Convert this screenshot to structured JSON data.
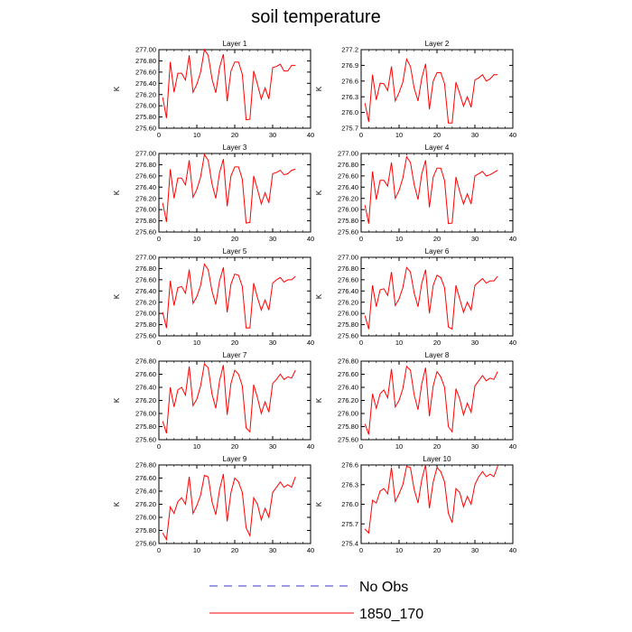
{
  "title": "soil temperature",
  "legend": [
    {
      "label": "No Obs",
      "color": "#3333cc",
      "dashed": true
    },
    {
      "label": "1850_170",
      "color": "#ff0000",
      "dashed": false
    }
  ],
  "chart_data": [
    {
      "type": "line",
      "title": "Layer 1",
      "ylabel": "K",
      "xlim": [
        0,
        40
      ],
      "ylim": [
        275.6,
        277.0
      ],
      "xticks": [
        "0",
        "10",
        "20",
        "30",
        "40"
      ],
      "yticks": [
        "275.60",
        "275.80",
        "276.00",
        "276.20",
        "276.40",
        "276.60",
        "276.80",
        "277.00"
      ],
      "series": [
        {
          "name": "1850_170",
          "color": "#ff0000",
          "x": [
            1,
            2,
            3,
            4,
            5,
            6,
            7,
            8,
            9,
            10,
            11,
            12,
            13,
            14,
            15,
            16,
            17,
            18,
            19,
            20,
            21,
            22,
            23,
            24,
            25,
            26,
            27,
            28,
            29,
            30,
            31,
            32,
            33,
            34,
            35,
            36
          ],
          "values": [
            276.15,
            275.78,
            276.78,
            276.24,
            276.58,
            276.58,
            276.46,
            276.9,
            276.24,
            276.38,
            276.6,
            277.0,
            276.9,
            276.48,
            276.23,
            276.68,
            276.92,
            276.08,
            276.62,
            276.78,
            276.78,
            276.56,
            275.75,
            275.76,
            276.62,
            276.38,
            276.12,
            276.32,
            276.12,
            276.68,
            276.7,
            276.74,
            276.62,
            276.62,
            276.72,
            276.72
          ]
        }
      ]
    },
    {
      "type": "line",
      "title": "Layer 2",
      "ylabel": "K",
      "xlim": [
        0,
        40
      ],
      "ylim": [
        275.7,
        277.2
      ],
      "xticks": [
        "0",
        "10",
        "20",
        "30",
        "40"
      ],
      "yticks": [
        "275.7",
        "276.0",
        "276.3",
        "276.6",
        "276.9",
        "277.2"
      ],
      "series": [
        {
          "name": "1850_170",
          "color": "#ff0000",
          "x": [
            1,
            2,
            3,
            4,
            5,
            6,
            7,
            8,
            9,
            10,
            11,
            12,
            13,
            14,
            15,
            16,
            17,
            18,
            19,
            20,
            21,
            22,
            23,
            24,
            25,
            26,
            27,
            28,
            29,
            30,
            31,
            32,
            33,
            34,
            35,
            36
          ],
          "values": [
            276.18,
            275.82,
            276.72,
            276.24,
            276.56,
            276.55,
            276.42,
            276.88,
            276.22,
            276.38,
            276.58,
            277.02,
            276.88,
            276.46,
            276.22,
            276.66,
            276.93,
            276.06,
            276.6,
            276.76,
            276.76,
            276.55,
            275.8,
            275.8,
            276.58,
            276.36,
            276.12,
            276.3,
            276.1,
            276.62,
            276.66,
            276.72,
            276.6,
            276.64,
            276.72,
            276.72
          ]
        }
      ]
    },
    {
      "type": "line",
      "title": "Layer 3",
      "ylabel": "K",
      "xlim": [
        0,
        40
      ],
      "ylim": [
        275.6,
        277.0
      ],
      "xticks": [
        "0",
        "10",
        "20",
        "30",
        "40"
      ],
      "yticks": [
        "275.60",
        "275.80",
        "276.00",
        "276.20",
        "276.40",
        "276.60",
        "276.80",
        "277.00"
      ],
      "series": [
        {
          "name": "1850_170",
          "color": "#ff0000",
          "x": [
            1,
            2,
            3,
            4,
            5,
            6,
            7,
            8,
            9,
            10,
            11,
            12,
            13,
            14,
            15,
            16,
            17,
            18,
            19,
            20,
            21,
            22,
            23,
            24,
            25,
            26,
            27,
            28,
            29,
            30,
            31,
            32,
            33,
            34,
            35,
            36
          ],
          "values": [
            276.12,
            275.78,
            276.72,
            276.2,
            276.56,
            276.56,
            276.44,
            276.88,
            276.22,
            276.36,
            276.58,
            276.98,
            276.88,
            276.46,
            276.2,
            276.66,
            276.9,
            276.06,
            276.6,
            276.76,
            276.76,
            276.54,
            275.76,
            275.77,
            276.6,
            276.36,
            276.1,
            276.3,
            276.12,
            276.64,
            276.66,
            276.7,
            276.62,
            276.64,
            276.7,
            276.72
          ]
        }
      ]
    },
    {
      "type": "line",
      "title": "Layer 4",
      "ylabel": "K",
      "xlim": [
        0,
        40
      ],
      "ylim": [
        275.6,
        277.0
      ],
      "xticks": [
        "0",
        "10",
        "20",
        "30",
        "40"
      ],
      "yticks": [
        "275.60",
        "275.80",
        "276.00",
        "276.20",
        "276.40",
        "276.60",
        "276.80",
        "277.00"
      ],
      "series": [
        {
          "name": "1850_170",
          "color": "#ff0000",
          "x": [
            1,
            2,
            3,
            4,
            5,
            6,
            7,
            8,
            9,
            10,
            11,
            12,
            13,
            14,
            15,
            16,
            17,
            18,
            19,
            20,
            21,
            22,
            23,
            24,
            25,
            26,
            27,
            28,
            29,
            30,
            31,
            32,
            33,
            34,
            35,
            36
          ],
          "values": [
            276.08,
            275.75,
            276.68,
            276.18,
            276.52,
            276.52,
            276.42,
            276.84,
            276.2,
            276.34,
            276.56,
            276.94,
            276.84,
            276.44,
            276.18,
            276.64,
            276.88,
            276.04,
            276.58,
            276.74,
            276.74,
            276.52,
            275.75,
            275.76,
            276.58,
            276.32,
            276.1,
            276.28,
            276.1,
            276.6,
            276.64,
            276.68,
            276.6,
            276.62,
            276.66,
            276.7
          ]
        }
      ]
    },
    {
      "type": "line",
      "title": "Layer 5",
      "ylabel": "K",
      "xlim": [
        0,
        40
      ],
      "ylim": [
        275.6,
        277.0
      ],
      "xticks": [
        "0",
        "10",
        "20",
        "30",
        "40"
      ],
      "yticks": [
        "275.60",
        "275.80",
        "276.00",
        "276.20",
        "276.40",
        "276.60",
        "276.80",
        "277.00"
      ],
      "series": [
        {
          "name": "1850_170",
          "color": "#ff0000",
          "x": [
            1,
            2,
            3,
            4,
            5,
            6,
            7,
            8,
            9,
            10,
            11,
            12,
            13,
            14,
            15,
            16,
            17,
            18,
            19,
            20,
            21,
            22,
            23,
            24,
            25,
            26,
            27,
            28,
            29,
            30,
            31,
            32,
            33,
            34,
            35,
            36
          ],
          "values": [
            276.02,
            275.74,
            276.58,
            276.14,
            276.46,
            276.48,
            276.36,
            276.78,
            276.18,
            276.3,
            276.5,
            276.88,
            276.78,
            276.4,
            276.16,
            276.58,
            276.82,
            276.02,
            276.52,
            276.7,
            276.68,
            276.48,
            275.74,
            275.74,
            276.54,
            276.28,
            276.06,
            276.24,
            276.06,
            276.54,
            276.6,
            276.64,
            276.56,
            276.6,
            276.6,
            276.66
          ]
        }
      ]
    },
    {
      "type": "line",
      "title": "Layer 6",
      "ylabel": "K",
      "xlim": [
        0,
        40
      ],
      "ylim": [
        275.6,
        277.0
      ],
      "xticks": [
        "0",
        "10",
        "20",
        "30",
        "40"
      ],
      "yticks": [
        "275.60",
        "275.80",
        "276.00",
        "276.20",
        "276.40",
        "276.60",
        "276.80",
        "277.00"
      ],
      "series": [
        {
          "name": "1850_170",
          "color": "#ff0000",
          "x": [
            1,
            2,
            3,
            4,
            5,
            6,
            7,
            8,
            9,
            10,
            11,
            12,
            13,
            14,
            15,
            16,
            17,
            18,
            19,
            20,
            21,
            22,
            23,
            24,
            25,
            26,
            27,
            28,
            29,
            30,
            31,
            32,
            33,
            34,
            35,
            36
          ],
          "values": [
            275.96,
            275.72,
            276.5,
            276.12,
            276.42,
            276.44,
            276.32,
            276.74,
            276.14,
            276.26,
            276.46,
            276.82,
            276.74,
            276.36,
            276.12,
            276.54,
            276.78,
            276.0,
            276.5,
            276.68,
            276.64,
            276.46,
            275.76,
            275.72,
            276.5,
            276.26,
            276.02,
            276.2,
            276.06,
            276.5,
            276.56,
            276.62,
            276.54,
            276.58,
            276.58,
            276.66
          ]
        }
      ]
    },
    {
      "type": "line",
      "title": "Layer 7",
      "ylabel": "K",
      "xlim": [
        0,
        40
      ],
      "ylim": [
        275.6,
        276.8
      ],
      "xticks": [
        "0",
        "10",
        "20",
        "30",
        "40"
      ],
      "yticks": [
        "275.60",
        "275.80",
        "276.00",
        "276.20",
        "276.40",
        "276.60",
        "276.80"
      ],
      "series": [
        {
          "name": "1850_170",
          "color": "#ff0000",
          "x": [
            1,
            2,
            3,
            4,
            5,
            6,
            7,
            8,
            9,
            10,
            11,
            12,
            13,
            14,
            15,
            16,
            17,
            18,
            19,
            20,
            21,
            22,
            23,
            24,
            25,
            26,
            27,
            28,
            29,
            30,
            31,
            32,
            33,
            34,
            35,
            36
          ],
          "values": [
            275.88,
            275.7,
            276.4,
            276.1,
            276.36,
            276.4,
            276.28,
            276.72,
            276.12,
            276.22,
            276.42,
            276.76,
            276.7,
            276.3,
            276.08,
            276.5,
            276.74,
            275.98,
            276.46,
            276.66,
            276.6,
            276.42,
            275.78,
            275.72,
            276.44,
            276.24,
            276.0,
            276.18,
            276.02,
            276.46,
            276.52,
            276.6,
            276.52,
            276.56,
            276.54,
            276.66
          ]
        }
      ]
    },
    {
      "type": "line",
      "title": "Layer 8",
      "ylabel": "K",
      "xlim": [
        0,
        40
      ],
      "ylim": [
        275.6,
        276.8
      ],
      "xticks": [
        "0",
        "10",
        "20",
        "30",
        "40"
      ],
      "yticks": [
        "275.60",
        "275.80",
        "276.00",
        "276.20",
        "276.40",
        "276.60",
        "276.80"
      ],
      "series": [
        {
          "name": "1850_170",
          "color": "#ff0000",
          "x": [
            1,
            2,
            3,
            4,
            5,
            6,
            7,
            8,
            9,
            10,
            11,
            12,
            13,
            14,
            15,
            16,
            17,
            18,
            19,
            20,
            21,
            22,
            23,
            24,
            25,
            26,
            27,
            28,
            29,
            30,
            31,
            32,
            33,
            34,
            35,
            36
          ],
          "values": [
            275.84,
            275.68,
            276.3,
            276.08,
            276.3,
            276.36,
            276.24,
            276.68,
            276.1,
            276.2,
            276.38,
            276.72,
            276.66,
            276.28,
            276.06,
            276.46,
            276.7,
            275.96,
            276.42,
            276.64,
            276.56,
            276.4,
            275.8,
            275.72,
            276.38,
            276.22,
            275.98,
            276.16,
            276.02,
            276.42,
            276.5,
            276.58,
            276.5,
            276.54,
            276.52,
            276.64
          ]
        }
      ]
    },
    {
      "type": "line",
      "title": "Layer 9",
      "ylabel": "K",
      "xlim": [
        0,
        40
      ],
      "ylim": [
        275.6,
        276.8
      ],
      "xticks": [
        "0",
        "10",
        "20",
        "30",
        "40"
      ],
      "yticks": [
        "275.60",
        "275.80",
        "276.00",
        "276.20",
        "276.40",
        "276.60",
        "276.80"
      ],
      "series": [
        {
          "name": "1850_170",
          "color": "#ff0000",
          "x": [
            1,
            2,
            3,
            4,
            5,
            6,
            7,
            8,
            9,
            10,
            11,
            12,
            13,
            14,
            15,
            16,
            17,
            18,
            19,
            20,
            21,
            22,
            23,
            24,
            25,
            26,
            27,
            28,
            29,
            30,
            31,
            32,
            33,
            34,
            35,
            36
          ],
          "values": [
            275.76,
            275.66,
            276.16,
            276.06,
            276.24,
            276.3,
            276.2,
            276.62,
            276.06,
            276.18,
            276.34,
            276.64,
            276.62,
            276.24,
            276.04,
            276.42,
            276.66,
            275.94,
            276.38,
            276.6,
            276.54,
            276.38,
            275.84,
            275.72,
            276.3,
            276.2,
            275.96,
            276.14,
            276.0,
            276.38,
            276.46,
            276.54,
            276.46,
            276.5,
            276.46,
            276.62
          ]
        }
      ]
    },
    {
      "type": "line",
      "title": "Layer 10",
      "ylabel": "K",
      "xlim": [
        0,
        40
      ],
      "ylim": [
        275.4,
        276.6
      ],
      "xticks": [
        "0",
        "10",
        "20",
        "30",
        "40"
      ],
      "yticks": [
        "275.4",
        "275.7",
        "276.0",
        "276.3",
        "276.6"
      ],
      "series": [
        {
          "name": "1850_170",
          "color": "#ff0000",
          "x": [
            1,
            2,
            3,
            4,
            5,
            6,
            7,
            8,
            9,
            10,
            11,
            12,
            13,
            14,
            15,
            16,
            17,
            18,
            19,
            20,
            21,
            22,
            23,
            24,
            25,
            26,
            27,
            28,
            29,
            30,
            31,
            32,
            33,
            34,
            35,
            36
          ],
          "values": [
            275.62,
            275.56,
            276.06,
            276.02,
            276.2,
            276.24,
            276.16,
            276.56,
            276.04,
            276.16,
            276.3,
            276.58,
            276.56,
            276.22,
            276.02,
            276.38,
            276.6,
            275.94,
            276.34,
            276.56,
            276.5,
            276.34,
            275.86,
            275.72,
            276.24,
            276.18,
            275.96,
            276.12,
            276.0,
            276.3,
            276.42,
            276.5,
            276.42,
            276.46,
            276.42,
            276.58
          ]
        }
      ]
    }
  ]
}
